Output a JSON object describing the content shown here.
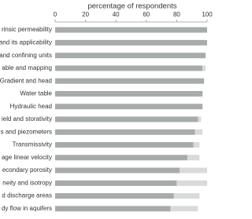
{
  "chart_data": {
    "type": "stacked-barh",
    "x_label": "percentage of respondents",
    "categories": [
      "rinsic permeability",
      "and its applicability",
      "and confining units",
      "able and mapping",
      "Gradient and head",
      "Water table",
      "Hydraulic head",
      "ield and storativity",
      "s and piezometers",
      "Transmissivity",
      "age linear velocity",
      "econdary porosity",
      "neity and isotropy",
      "d discharge areas",
      "dy flow in aquifers"
    ],
    "series": [
      {
        "color": "#a7abab",
        "values": [
          100,
          100,
          99,
          97,
          98,
          97,
          97,
          94,
          92,
          91,
          87,
          82,
          80,
          78,
          76
        ]
      },
      {
        "color": "#d9dbdb",
        "values": [
          0,
          0,
          0,
          2,
          0,
          0,
          0,
          2,
          5,
          4,
          8,
          18,
          20,
          17,
          18
        ]
      }
    ],
    "xlim": [
      0,
      100
    ],
    "xticks": [
      0,
      20,
      40,
      60,
      80,
      100
    ],
    "x_axis_position": "top"
  }
}
